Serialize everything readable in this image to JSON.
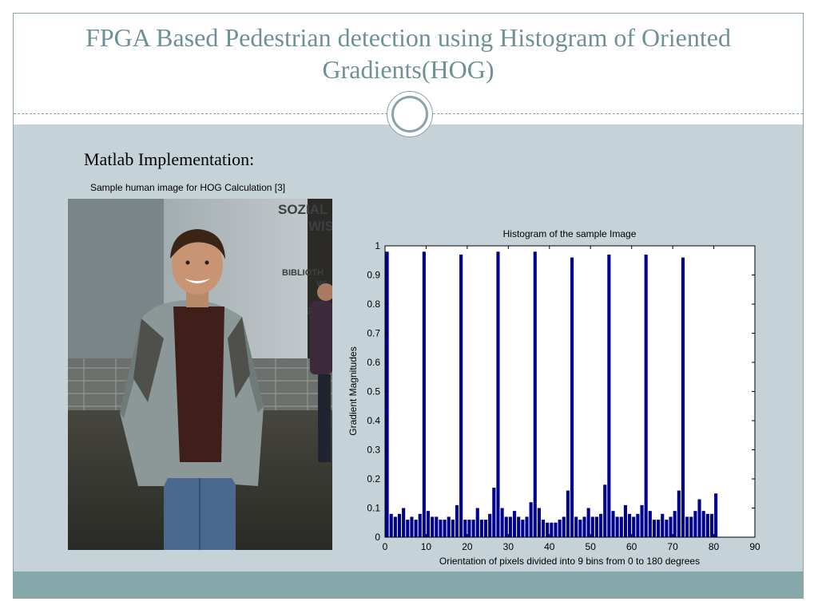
{
  "slide": {
    "title": "FPGA Based Pedestrian detection using Histogram of Oriented Gradients(HOG)",
    "subheading": "Matlab Implementation:",
    "image_caption": "Sample human image for HOG Calculation [3]",
    "photo_wall_text": [
      "SOZIAL",
      "WIS",
      "BIBLIOTH",
      "WI",
      "Z"
    ]
  },
  "colors": {
    "accent": "#6d9196",
    "content_background": "#c5d2d8",
    "footer": "#85a7aa",
    "bars": "#00008f"
  },
  "chart_data": {
    "type": "bar",
    "title": "Histogram of the sample Image",
    "xlabel": "Orientation of pixels divided into 9 bins from 0 to 180 degrees",
    "ylabel": "Gradient Magnitudes",
    "xlim": [
      0,
      90
    ],
    "ylim": [
      0,
      1
    ],
    "xticks": [
      "0",
      "10",
      "20",
      "30",
      "40",
      "50",
      "60",
      "70",
      "80",
      "90"
    ],
    "yticks": [
      "0",
      "0.1",
      "0.2",
      "0.3",
      "0.4",
      "0.5",
      "0.6",
      "0.7",
      "0.8",
      "0.9",
      "1"
    ],
    "grid": false,
    "x": [
      1,
      2,
      3,
      4,
      5,
      6,
      7,
      8,
      9,
      10,
      11,
      12,
      13,
      14,
      15,
      16,
      17,
      18,
      19,
      20,
      21,
      22,
      23,
      24,
      25,
      26,
      27,
      28,
      29,
      30,
      31,
      32,
      33,
      34,
      35,
      36,
      37,
      38,
      39,
      40,
      41,
      42,
      43,
      44,
      45,
      46,
      47,
      48,
      49,
      50,
      51,
      52,
      53,
      54,
      55,
      56,
      57,
      58,
      59,
      60,
      61,
      62,
      63,
      64,
      65,
      66,
      67,
      68,
      69,
      70,
      71,
      72,
      73,
      74,
      75,
      76,
      77,
      78,
      79,
      80,
      81
    ],
    "values": [
      0.98,
      0.08,
      0.07,
      0.08,
      0.1,
      0.06,
      0.07,
      0.06,
      0.08,
      0.98,
      0.09,
      0.07,
      0.07,
      0.06,
      0.06,
      0.07,
      0.06,
      0.11,
      0.97,
      0.06,
      0.06,
      0.06,
      0.1,
      0.06,
      0.06,
      0.08,
      0.17,
      0.98,
      0.1,
      0.07,
      0.07,
      0.09,
      0.07,
      0.06,
      0.07,
      0.12,
      0.98,
      0.1,
      0.06,
      0.05,
      0.05,
      0.05,
      0.06,
      0.07,
      0.16,
      0.96,
      0.07,
      0.06,
      0.07,
      0.1,
      0.07,
      0.07,
      0.08,
      0.18,
      0.97,
      0.09,
      0.07,
      0.07,
      0.11,
      0.08,
      0.07,
      0.08,
      0.11,
      0.97,
      0.09,
      0.06,
      0.06,
      0.08,
      0.06,
      0.07,
      0.09,
      0.16,
      0.96,
      0.07,
      0.07,
      0.09,
      0.13,
      0.09,
      0.08,
      0.08,
      0.15
    ]
  }
}
